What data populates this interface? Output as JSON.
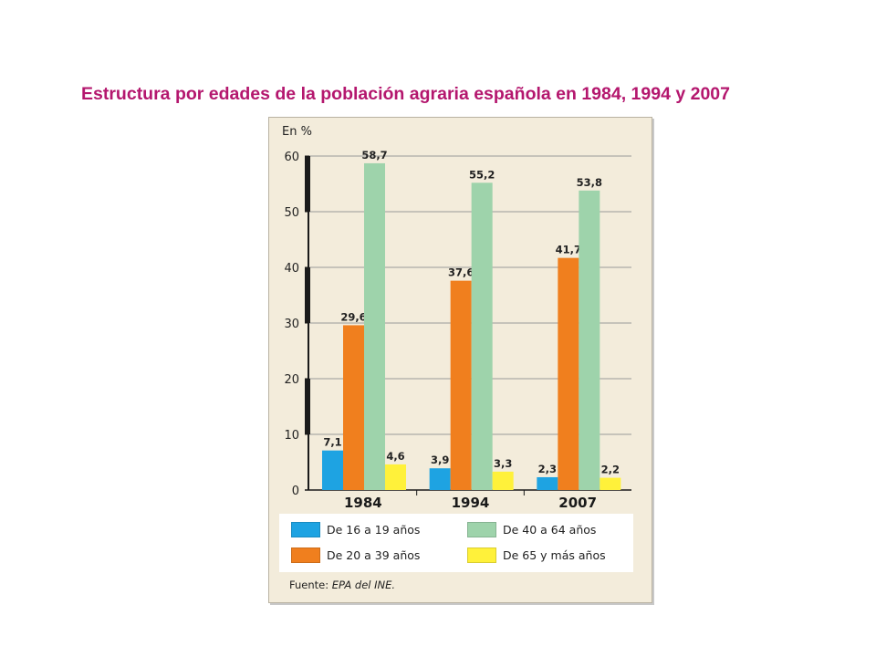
{
  "slide": {
    "title": "Estructura por edades de la población agraria española en 1984, 1994 y 2007"
  },
  "chart_data": {
    "type": "bar",
    "unit_label": "En %",
    "categories": [
      "1984",
      "1994",
      "2007"
    ],
    "series": [
      {
        "name": "De 16 a 19 años",
        "color": "#1ea3e2",
        "values": [
          7.1,
          3.9,
          2.3
        ],
        "labels": [
          "7,1",
          "3,9",
          "2,3"
        ]
      },
      {
        "name": "De 20 a 39 años",
        "color": "#f07f1e",
        "values": [
          29.6,
          37.6,
          41.7
        ],
        "labels": [
          "29,6",
          "37,6",
          "41,7"
        ]
      },
      {
        "name": "De 40 a 64 años",
        "color": "#9ed3ab",
        "values": [
          58.7,
          55.2,
          53.8
        ],
        "labels": [
          "58,7",
          "55,2",
          "53,8"
        ]
      },
      {
        "name": "De 65 y más años",
        "color": "#fff13a",
        "values": [
          4.6,
          3.3,
          2.2
        ],
        "labels": [
          "4,6",
          "3,3",
          "2,2"
        ]
      }
    ],
    "ylim": [
      0,
      60
    ],
    "yticks": [
      "0",
      "10",
      "20",
      "30",
      "40",
      "50",
      "60"
    ],
    "grid": true,
    "legend_position": "bottom",
    "axis_color": "#1a1a1a"
  },
  "source": {
    "label": "Fuente:",
    "text": "EPA del INE."
  }
}
